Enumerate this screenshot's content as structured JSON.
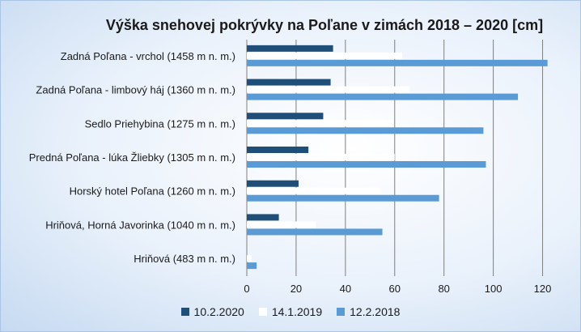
{
  "chart_data": {
    "type": "bar",
    "orientation": "horizontal",
    "title": "Výška snehovej pokrývky na Poľane v zimách 2018 – 2020 [cm]",
    "categories": [
      "Zadná Poľana - vrchol (1458 m n. m.)",
      "Zadná Poľana - limbový háj (1360 m n. m.)",
      "Sedlo Priehybina (1275 m n. m.)",
      "Predná Poľana - lúka Žliebky (1305 m n. m.)",
      "Horský hotel Poľana (1260 m n. m.)",
      "Hriňová, Horná Javorinka (1040 m n. m.)",
      "Hriňová (483 m n. m.)"
    ],
    "series": [
      {
        "name": "10.2.2020",
        "color": "#1f4e79",
        "values": [
          35,
          34,
          31,
          25,
          21,
          13,
          0
        ]
      },
      {
        "name": "14.1.2019",
        "color": "#ffffff",
        "values": [
          63,
          66,
          59,
          60,
          54,
          28,
          2
        ]
      },
      {
        "name": "12.2.2018",
        "color": "#5b9bd5",
        "values": [
          122,
          110,
          96,
          97,
          78,
          55,
          4
        ]
      }
    ],
    "xlim": [
      0,
      130
    ],
    "xticks": [
      0,
      20,
      40,
      60,
      80,
      100,
      120
    ],
    "grid": true,
    "legend_position": "bottom"
  }
}
